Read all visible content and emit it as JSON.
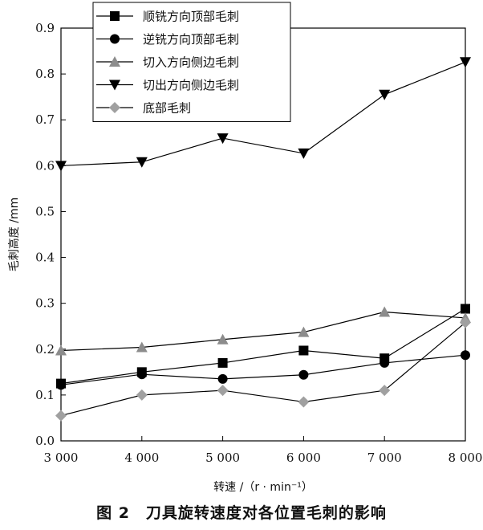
{
  "chart_data": {
    "type": "line",
    "x": [
      3000,
      4000,
      5000,
      6000,
      7000,
      8000
    ],
    "x_tick_labels": [
      "3 000",
      "4 000",
      "5 000",
      "6 000",
      "7 000",
      "8 000"
    ],
    "xlabel": "转速 /（r · min⁻¹）",
    "ylabel": "毛刺高度 /mm",
    "ylim": [
      0,
      0.9
    ],
    "y_ticks": [
      0.0,
      0.1,
      0.2,
      0.3,
      0.4,
      0.5,
      0.6,
      0.7,
      0.8,
      0.9
    ],
    "y_tick_labels": [
      "0.0",
      "0.1",
      "0.2",
      "0.3",
      "0.4",
      "0.5",
      "0.6",
      "0.7",
      "0.8",
      "0.9"
    ],
    "grid": false,
    "legend_position": "top-left",
    "series": [
      {
        "name": "顺铣方向顶部毛刺",
        "marker": "square",
        "color": "#000000",
        "values": [
          0.125,
          0.15,
          0.17,
          0.197,
          0.18,
          0.288
        ]
      },
      {
        "name": "逆铣方向顶部毛刺",
        "marker": "circle",
        "color": "#000000",
        "values": [
          0.122,
          0.145,
          0.135,
          0.144,
          0.17,
          0.187
        ]
      },
      {
        "name": "切入方向侧边毛刺",
        "marker": "triangle-up",
        "color": "#8c8c8c",
        "values": [
          0.197,
          0.204,
          0.221,
          0.237,
          0.281,
          0.268
        ]
      },
      {
        "name": "切出方向侧边毛刺",
        "marker": "triangle-down",
        "color": "#000000",
        "values": [
          0.6,
          0.608,
          0.66,
          0.627,
          0.755,
          0.826
        ]
      },
      {
        "name": "底部毛刺",
        "marker": "diamond",
        "color": "#a0a0a0",
        "values": [
          0.055,
          0.1,
          0.11,
          0.085,
          0.11,
          0.258
        ]
      }
    ]
  },
  "caption": "图 2　刀具旋转速度对各位置毛刺的影响"
}
